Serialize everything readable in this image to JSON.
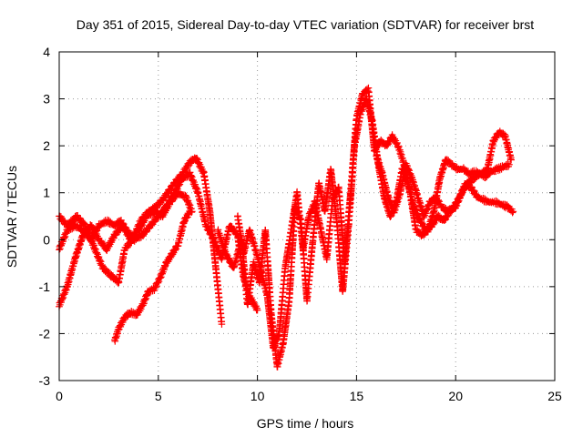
{
  "chart_data": {
    "type": "scatter",
    "title": "Day 351 of 2015, Sidereal Day-to-day VTEC variation (SDTVAR) for receiver brst",
    "xlabel": "GPS time / hours",
    "ylabel": "SDTVAR / TECUs",
    "xlim": [
      0,
      25
    ],
    "ylim": [
      -3,
      4
    ],
    "xticks": [
      "0",
      "5",
      "10",
      "15",
      "20",
      "25"
    ],
    "yticks": [
      "-3",
      "-2",
      "-1",
      "0",
      "1",
      "2",
      "3",
      "4"
    ],
    "grid": true,
    "legend": "none",
    "marker": "plus",
    "color": "#ff0000",
    "series": [
      {
        "values": [
          {
            "x": 0.0,
            "y": 0.5
          },
          {
            "x": 0.4,
            "y": 0.3
          },
          {
            "x": 0.9,
            "y": 0.5
          },
          {
            "x": 1.3,
            "y": 0.3
          },
          {
            "x": 1.8,
            "y": -0.2
          },
          {
            "x": 2.2,
            "y": -0.6
          },
          {
            "x": 2.7,
            "y": -0.8
          },
          {
            "x": 3.0,
            "y": -0.9
          },
          {
            "x": 3.3,
            "y": -0.2
          },
          {
            "x": 3.7,
            "y": 0.0
          },
          {
            "x": 4.1,
            "y": 0.4
          },
          {
            "x": 4.5,
            "y": 0.6
          },
          {
            "x": 4.9,
            "y": 0.7
          },
          {
            "x": 5.3,
            "y": 0.9
          },
          {
            "x": 5.8,
            "y": 1.2
          },
          {
            "x": 6.2,
            "y": 1.4
          },
          {
            "x": 6.6,
            "y": 1.65
          },
          {
            "x": 6.9,
            "y": 1.75
          },
          {
            "x": 7.3,
            "y": 1.4
          },
          {
            "x": 7.6,
            "y": 0.6
          },
          {
            "x": 7.9,
            "y": -0.6
          },
          {
            "x": 8.2,
            "y": -1.8
          }
        ]
      },
      {
        "values": [
          {
            "x": 0.0,
            "y": -0.2
          },
          {
            "x": 0.4,
            "y": 0.2
          },
          {
            "x": 0.8,
            "y": 0.3
          },
          {
            "x": 1.2,
            "y": 0.2
          },
          {
            "x": 1.6,
            "y": 0.0
          },
          {
            "x": 2.0,
            "y": 0.3
          },
          {
            "x": 2.4,
            "y": 0.4
          },
          {
            "x": 2.8,
            "y": 0.3
          },
          {
            "x": 3.1,
            "y": 0.4
          },
          {
            "x": 3.4,
            "y": 0.2
          },
          {
            "x": 3.8,
            "y": 0.0
          },
          {
            "x": 4.2,
            "y": 0.1
          },
          {
            "x": 4.6,
            "y": 0.3
          },
          {
            "x": 5.0,
            "y": 0.5
          },
          {
            "x": 5.4,
            "y": 0.7
          },
          {
            "x": 5.8,
            "y": 1.0
          },
          {
            "x": 6.2,
            "y": 1.3
          },
          {
            "x": 6.6,
            "y": 1.4
          },
          {
            "x": 7.0,
            "y": 1.0
          },
          {
            "x": 7.4,
            "y": 0.3
          },
          {
            "x": 7.8,
            "y": 0.0
          },
          {
            "x": 8.2,
            "y": -0.4
          },
          {
            "x": 8.6,
            "y": 0.3
          },
          {
            "x": 9.0,
            "y": 0.1
          },
          {
            "x": 9.3,
            "y": -0.8
          },
          {
            "x": 9.6,
            "y": -1.2
          },
          {
            "x": 10.0,
            "y": -1.5
          }
        ]
      },
      {
        "values": [
          {
            "x": 0.0,
            "y": -1.4
          },
          {
            "x": 0.4,
            "y": -1.0
          },
          {
            "x": 0.8,
            "y": -0.4
          },
          {
            "x": 1.2,
            "y": 0.1
          },
          {
            "x": 1.6,
            "y": 0.3
          },
          {
            "x": 2.0,
            "y": 0.0
          },
          {
            "x": 2.4,
            "y": -0.2
          },
          {
            "x": 2.8,
            "y": 0.1
          },
          {
            "x": 3.2,
            "y": 0.3
          },
          {
            "x": 3.6,
            "y": 0.0
          },
          {
            "x": 4.0,
            "y": 0.2
          },
          {
            "x": 4.4,
            "y": 0.5
          },
          {
            "x": 4.8,
            "y": 0.6
          },
          {
            "x": 5.2,
            "y": 0.5
          },
          {
            "x": 5.6,
            "y": 0.8
          },
          {
            "x": 6.0,
            "y": 1.0
          },
          {
            "x": 6.4,
            "y": 0.9
          },
          {
            "x": 6.7,
            "y": 0.6
          }
        ]
      },
      {
        "values": [
          {
            "x": 2.8,
            "y": -2.15
          },
          {
            "x": 3.0,
            "y": -1.9
          },
          {
            "x": 3.3,
            "y": -1.65
          },
          {
            "x": 3.6,
            "y": -1.55
          },
          {
            "x": 3.9,
            "y": -1.6
          },
          {
            "x": 4.2,
            "y": -1.4
          },
          {
            "x": 4.5,
            "y": -1.1
          },
          {
            "x": 4.8,
            "y": -1.05
          },
          {
            "x": 5.1,
            "y": -0.8
          },
          {
            "x": 5.4,
            "y": -0.5
          },
          {
            "x": 5.7,
            "y": -0.3
          },
          {
            "x": 6.0,
            "y": -0.1
          },
          {
            "x": 6.3,
            "y": 0.4
          },
          {
            "x": 6.6,
            "y": 0.6
          }
        ]
      },
      {
        "values": [
          {
            "x": 8.0,
            "y": 0.2
          },
          {
            "x": 8.4,
            "y": -0.3
          },
          {
            "x": 8.8,
            "y": -0.6
          },
          {
            "x": 9.2,
            "y": 0.0
          },
          {
            "x": 9.5,
            "y": -1.4
          },
          {
            "x": 9.8,
            "y": -0.5
          },
          {
            "x": 10.1,
            "y": -0.9
          },
          {
            "x": 10.4,
            "y": 0.2
          },
          {
            "x": 10.7,
            "y": -1.6
          },
          {
            "x": 11.0,
            "y": -2.7
          },
          {
            "x": 11.3,
            "y": -2.2
          },
          {
            "x": 11.6,
            "y": -1.3
          },
          {
            "x": 11.9,
            "y": 0.7
          },
          {
            "x": 12.2,
            "y": 0.4
          },
          {
            "x": 12.5,
            "y": -1.3
          },
          {
            "x": 12.8,
            "y": 0.0
          },
          {
            "x": 13.1,
            "y": 1.2
          },
          {
            "x": 13.4,
            "y": 0.6
          },
          {
            "x": 13.7,
            "y": 1.5
          },
          {
            "x": 14.0,
            "y": 0.4
          },
          {
            "x": 14.3,
            "y": -1.1
          },
          {
            "x": 14.6,
            "y": 0.3
          },
          {
            "x": 14.9,
            "y": 2.0
          },
          {
            "x": 15.2,
            "y": 2.7
          },
          {
            "x": 15.5,
            "y": 3.0
          },
          {
            "x": 15.8,
            "y": 2.5
          },
          {
            "x": 16.1,
            "y": 1.6
          },
          {
            "x": 16.4,
            "y": 0.9
          },
          {
            "x": 16.7,
            "y": 0.5
          },
          {
            "x": 17.0,
            "y": 0.8
          },
          {
            "x": 17.3,
            "y": 1.5
          },
          {
            "x": 17.6,
            "y": 1.2
          },
          {
            "x": 17.9,
            "y": 0.7
          },
          {
            "x": 18.2,
            "y": 0.4
          },
          {
            "x": 18.5,
            "y": 0.2
          },
          {
            "x": 18.8,
            "y": 0.3
          },
          {
            "x": 19.1,
            "y": 0.5
          },
          {
            "x": 19.4,
            "y": 0.4
          },
          {
            "x": 19.7,
            "y": 0.6
          },
          {
            "x": 20.0,
            "y": 0.7
          },
          {
            "x": 20.3,
            "y": 1.0
          },
          {
            "x": 20.6,
            "y": 1.2
          },
          {
            "x": 20.9,
            "y": 1.3
          },
          {
            "x": 21.2,
            "y": 1.4
          },
          {
            "x": 21.5,
            "y": 1.35
          },
          {
            "x": 21.8,
            "y": 1.45
          },
          {
            "x": 22.1,
            "y": 1.5
          },
          {
            "x": 22.4,
            "y": 1.55
          },
          {
            "x": 22.7,
            "y": 1.6
          }
        ]
      },
      {
        "values": [
          {
            "x": 9.0,
            "y": 0.5
          },
          {
            "x": 9.3,
            "y": -0.3
          },
          {
            "x": 9.6,
            "y": 0.2
          },
          {
            "x": 9.9,
            "y": -0.2
          },
          {
            "x": 10.2,
            "y": -0.7
          },
          {
            "x": 10.5,
            "y": -1.2
          },
          {
            "x": 10.8,
            "y": -2.3
          },
          {
            "x": 11.1,
            "y": -2.0
          },
          {
            "x": 11.4,
            "y": -0.6
          },
          {
            "x": 11.7,
            "y": 0.2
          },
          {
            "x": 12.0,
            "y": 1.0
          },
          {
            "x": 12.3,
            "y": -0.2
          },
          {
            "x": 12.6,
            "y": 0.5
          },
          {
            "x": 12.9,
            "y": 0.8
          },
          {
            "x": 13.2,
            "y": 0.2
          },
          {
            "x": 13.5,
            "y": -0.4
          },
          {
            "x": 13.8,
            "y": 0.9
          },
          {
            "x": 14.1,
            "y": 1.1
          },
          {
            "x": 14.4,
            "y": -0.5
          },
          {
            "x": 14.7,
            "y": 1.0
          },
          {
            "x": 15.0,
            "y": 2.6
          },
          {
            "x": 15.3,
            "y": 3.1
          },
          {
            "x": 15.6,
            "y": 3.2
          },
          {
            "x": 15.9,
            "y": 1.9
          },
          {
            "x": 16.2,
            "y": 2.1
          },
          {
            "x": 16.5,
            "y": 2.0
          },
          {
            "x": 16.8,
            "y": 2.2
          },
          {
            "x": 17.1,
            "y": 2.0
          },
          {
            "x": 17.4,
            "y": 1.6
          },
          {
            "x": 17.7,
            "y": 1.0
          },
          {
            "x": 18.0,
            "y": 0.2
          },
          {
            "x": 18.3,
            "y": 0.1
          },
          {
            "x": 18.6,
            "y": 0.2
          },
          {
            "x": 18.9,
            "y": 0.6
          },
          {
            "x": 19.2,
            "y": 1.3
          },
          {
            "x": 19.5,
            "y": 1.7
          },
          {
            "x": 19.8,
            "y": 1.6
          },
          {
            "x": 20.1,
            "y": 1.5
          },
          {
            "x": 20.4,
            "y": 1.5
          },
          {
            "x": 20.7,
            "y": 1.4
          },
          {
            "x": 21.0,
            "y": 1.45
          },
          {
            "x": 21.3,
            "y": 1.4
          },
          {
            "x": 21.6,
            "y": 1.5
          },
          {
            "x": 21.9,
            "y": 2.1
          },
          {
            "x": 22.2,
            "y": 2.3
          },
          {
            "x": 22.5,
            "y": 2.2
          },
          {
            "x": 22.8,
            "y": 1.7
          }
        ]
      },
      {
        "values": [
          {
            "x": 16.0,
            "y": 1.8
          },
          {
            "x": 16.3,
            "y": 1.4
          },
          {
            "x": 16.6,
            "y": 0.9
          },
          {
            "x": 16.9,
            "y": 0.6
          },
          {
            "x": 17.2,
            "y": 1.0
          },
          {
            "x": 17.5,
            "y": 1.6
          },
          {
            "x": 17.8,
            "y": 1.3
          },
          {
            "x": 18.1,
            "y": 0.9
          },
          {
            "x": 18.4,
            "y": 0.5
          },
          {
            "x": 18.7,
            "y": 0.8
          },
          {
            "x": 19.0,
            "y": 0.9
          },
          {
            "x": 19.3,
            "y": 0.7
          },
          {
            "x": 19.6,
            "y": 0.6
          },
          {
            "x": 19.9,
            "y": 0.7
          },
          {
            "x": 20.2,
            "y": 0.9
          },
          {
            "x": 20.5,
            "y": 1.2
          },
          {
            "x": 20.8,
            "y": 1.1
          },
          {
            "x": 21.1,
            "y": 0.9
          },
          {
            "x": 21.4,
            "y": 0.85
          },
          {
            "x": 21.7,
            "y": 0.8
          },
          {
            "x": 22.0,
            "y": 0.8
          },
          {
            "x": 22.3,
            "y": 0.75
          },
          {
            "x": 22.6,
            "y": 0.7
          },
          {
            "x": 22.9,
            "y": 0.6
          }
        ]
      }
    ]
  }
}
